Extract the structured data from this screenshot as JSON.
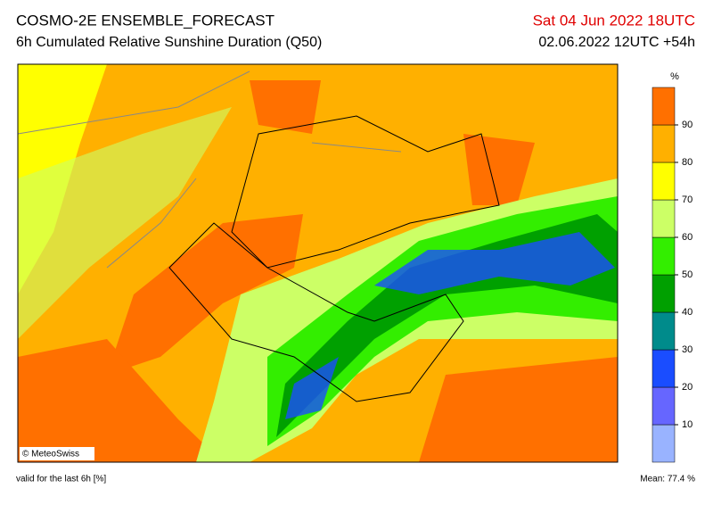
{
  "header": {
    "title": "COSMO-2E ENSEMBLE_FORECAST",
    "subtitle": "6h Cumulated Relative Sunshine Duration (Q50)",
    "valid_time": "Sat 04 Jun 2022 18UTC",
    "run_info": "02.06.2022 12UTC +54h"
  },
  "colorbar": {
    "unit": "%",
    "ticks": [
      10,
      20,
      30,
      40,
      50,
      60,
      70,
      80,
      90
    ],
    "colors": [
      "#99b3ff",
      "#6666ff",
      "#1a4dff",
      "#008b8b",
      "#00a000",
      "#33ee00",
      "#ccff66",
      "#ffff00",
      "#ffb000",
      "#ff7000"
    ]
  },
  "map": {
    "copyright": "© MeteoSwiss"
  },
  "footer": {
    "note": "valid for the last 6h [%]",
    "mean": "Mean:  77.4 %"
  }
}
